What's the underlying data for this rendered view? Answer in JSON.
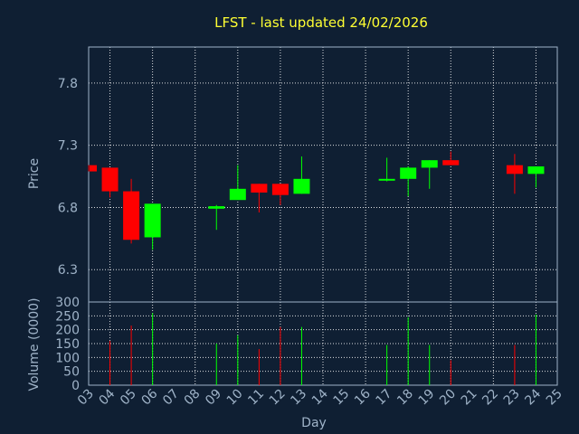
{
  "chart_data": {
    "type": "candlestick",
    "title": "LFST - last updated 24/02/2026",
    "xlabel": "Day",
    "ylabel": "Price",
    "volume_label": "Volume (0000)",
    "x_ticks": [
      "03",
      "04",
      "05",
      "06",
      "07",
      "08",
      "09",
      "10",
      "11",
      "12",
      "13",
      "14",
      "15",
      "16",
      "17",
      "18",
      "19",
      "20",
      "21",
      "22",
      "23",
      "24",
      "25"
    ],
    "price_ticks": [
      "7.8",
      "7.3",
      "6.8",
      "6.3"
    ],
    "price_tick_values": [
      7.8,
      7.3,
      6.8,
      6.3
    ],
    "price_range": [
      6.04,
      8.09
    ],
    "volume_ticks": [
      "300",
      "250",
      "200",
      "150",
      "100",
      "50",
      "0"
    ],
    "volume_tick_values": [
      300,
      250,
      200,
      150,
      100,
      50,
      0
    ],
    "volume_range": [
      0,
      300
    ],
    "up_color": "#00ff00",
    "down_color": "#ff0000",
    "grid": true,
    "candles": [
      {
        "day": 3,
        "open": 7.14,
        "close": 7.09,
        "high": 7.14,
        "low": 7.09,
        "volume": 0
      },
      {
        "day": 4,
        "open": 7.12,
        "close": 6.93,
        "high": 7.12,
        "low": 6.88,
        "volume": 160
      },
      {
        "day": 5,
        "open": 6.93,
        "close": 6.54,
        "high": 7.03,
        "low": 6.51,
        "volume": 215
      },
      {
        "day": 6,
        "open": 6.56,
        "close": 6.83,
        "high": 6.83,
        "low": 6.46,
        "volume": 260
      },
      {
        "day": 9,
        "open": 6.79,
        "close": 6.81,
        "high": 6.82,
        "low": 6.62,
        "volume": 150
      },
      {
        "day": 10,
        "open": 6.86,
        "close": 6.95,
        "high": 7.14,
        "low": 6.86,
        "volume": 180
      },
      {
        "day": 11,
        "open": 6.99,
        "close": 6.92,
        "high": 6.99,
        "low": 6.76,
        "volume": 130
      },
      {
        "day": 12,
        "open": 6.99,
        "close": 6.9,
        "high": 6.99,
        "low": 6.82,
        "volume": 210
      },
      {
        "day": 13,
        "open": 6.91,
        "close": 7.03,
        "high": 7.21,
        "low": 6.91,
        "volume": 210
      },
      {
        "day": 17,
        "open": 7.02,
        "close": 7.03,
        "high": 7.2,
        "low": 7.01,
        "volume": 145
      },
      {
        "day": 18,
        "open": 7.03,
        "close": 7.12,
        "high": 7.13,
        "low": 6.89,
        "volume": 245
      },
      {
        "day": 19,
        "open": 7.12,
        "close": 7.18,
        "high": 7.18,
        "low": 6.95,
        "volume": 145
      },
      {
        "day": 20,
        "open": 7.18,
        "close": 7.14,
        "high": 7.25,
        "low": 7.14,
        "volume": 90
      },
      {
        "day": 23,
        "open": 7.14,
        "close": 7.07,
        "high": 7.23,
        "low": 6.91,
        "volume": 145
      },
      {
        "day": 24,
        "open": 7.07,
        "close": 7.13,
        "high": 7.13,
        "low": 6.96,
        "volume": 255
      }
    ]
  }
}
